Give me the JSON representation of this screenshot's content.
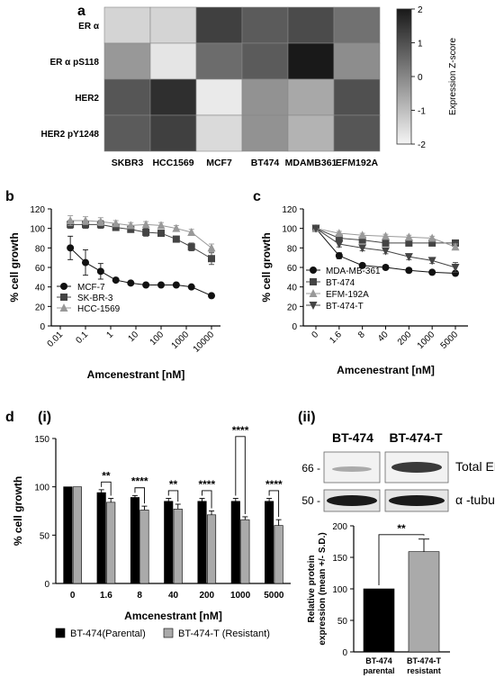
{
  "panel_labels": {
    "a": "a",
    "b": "b",
    "c": "c",
    "d": "d",
    "di": "(i)",
    "dii": "(ii)"
  },
  "chart_data": [
    {
      "panel": "a",
      "type": "heatmap",
      "rows": [
        "ER α",
        "ER α pS118",
        "HER2",
        "HER2 pY1248"
      ],
      "columns": [
        "SKBR3",
        "HCC1569",
        "MCF7",
        "BT474",
        "MDAMB361",
        "EFM192A"
      ],
      "values": [
        [
          -1.4,
          -1.4,
          1.3,
          0.8,
          1.1,
          0.4
        ],
        [
          -0.3,
          -1.7,
          0.5,
          0.8,
          2.0,
          -0.1
        ],
        [
          0.9,
          1.6,
          -1.8,
          -0.2,
          -0.6,
          1.0
        ],
        [
          0.8,
          1.3,
          -1.5,
          -0.2,
          -0.8,
          0.9
        ]
      ],
      "colorbar": {
        "label": "Expression Z-score",
        "min": -2,
        "max": 2,
        "ticks": [
          "2",
          "1",
          "0",
          "-1",
          "-2"
        ],
        "tick_values": [
          2,
          1,
          0,
          -1,
          -2
        ]
      }
    },
    {
      "panel": "b",
      "type": "line",
      "xscale": "log",
      "x_ticks": [
        "0.01",
        "0.1",
        "1",
        "10",
        "100",
        "1000",
        "10000"
      ],
      "x_tick_values": [
        0.01,
        0.1,
        1,
        10,
        100,
        1000,
        10000
      ],
      "y_ticks": [
        "0",
        "20",
        "40",
        "60",
        "80",
        "100",
        "120"
      ],
      "y_tick_values": [
        0,
        20,
        40,
        60,
        80,
        100,
        120
      ],
      "ylim": [
        0,
        120
      ],
      "xlabel": "Amcenestrant [nM]",
      "ylabel": "% cell growth",
      "legend_position": "bottom-left",
      "series": [
        {
          "name": "MCF-7",
          "marker": "circle",
          "color": "#111111",
          "x": [
            0.025,
            0.1,
            0.4,
            1.6,
            6.25,
            25,
            100,
            400,
            1600,
            10000
          ],
          "y": [
            80,
            65,
            56,
            47,
            44,
            42,
            42,
            42,
            40,
            31
          ],
          "err": [
            12,
            13,
            8,
            1,
            1,
            1,
            1,
            1,
            1,
            1
          ]
        },
        {
          "name": "SK-BR-3",
          "marker": "square",
          "color": "#444444",
          "x": [
            0.025,
            0.1,
            0.4,
            1.6,
            6.25,
            25,
            100,
            400,
            1600,
            10000
          ],
          "y": [
            104,
            104,
            104,
            101,
            99,
            96,
            95,
            89,
            81,
            69
          ],
          "err": [
            4,
            4,
            4,
            3,
            3,
            4,
            3,
            3,
            4,
            6
          ]
        },
        {
          "name": "HCC-1569",
          "marker": "triangle",
          "color": "#999999",
          "x": [
            0.025,
            0.1,
            0.4,
            1.6,
            6.25,
            25,
            100,
            400,
            1600,
            10000
          ],
          "y": [
            108,
            108,
            107,
            105,
            103,
            104,
            103,
            100,
            96,
            80
          ],
          "err": [
            5,
            4,
            4,
            3,
            3,
            3,
            3,
            3,
            3,
            4
          ]
        }
      ]
    },
    {
      "panel": "c",
      "type": "line",
      "x_ticks": [
        "0",
        "1.6",
        "8",
        "40",
        "200",
        "1000",
        "5000"
      ],
      "y_ticks": [
        "0",
        "20",
        "40",
        "60",
        "80",
        "100",
        "120"
      ],
      "y_tick_values": [
        0,
        20,
        40,
        60,
        80,
        100,
        120
      ],
      "ylim": [
        0,
        120
      ],
      "xlabel": "Amcenestrant [nM]",
      "ylabel": "% cell growth",
      "legend_position": "bottom-left",
      "series": [
        {
          "name": "MDA-MB-361",
          "marker": "circle",
          "color": "#111111",
          "y": [
            100,
            72,
            62,
            60,
            57,
            55,
            54
          ],
          "err": [
            0,
            3,
            2,
            2,
            2,
            2,
            2
          ]
        },
        {
          "name": "BT-474",
          "marker": "square",
          "color": "#444444",
          "y": [
            100,
            90,
            88,
            85,
            85,
            85,
            85
          ],
          "err": [
            0,
            3,
            2,
            2,
            2,
            2,
            3
          ]
        },
        {
          "name": "EFM-192A",
          "marker": "triangle",
          "color": "#999999",
          "y": [
            100,
            95,
            93,
            92,
            91,
            90,
            81
          ],
          "err": [
            0,
            2,
            2,
            2,
            2,
            2,
            3
          ]
        },
        {
          "name": "BT-474-T",
          "marker": "triangle-down",
          "color": "#444444",
          "y": [
            100,
            84,
            80,
            77,
            71,
            67,
            60
          ],
          "err": [
            0,
            3,
            3,
            3,
            3,
            3,
            5
          ]
        }
      ]
    },
    {
      "panel": "d(i)",
      "type": "bar",
      "categories": [
        "0",
        "1.6",
        "8",
        "40",
        "200",
        "1000",
        "5000"
      ],
      "xlabel": "Amcenestrant [nM]",
      "ylabel": "% cell growth",
      "y_ticks": [
        "0",
        "50",
        "100",
        "150"
      ],
      "y_tick_values": [
        0,
        50,
        100,
        150
      ],
      "ylim": [
        0,
        150
      ],
      "series": [
        {
          "name": "BT-474(Parental)",
          "color": "#000000",
          "values": [
            100,
            94,
            89,
            85,
            85,
            85,
            85
          ],
          "err": [
            0,
            3,
            2,
            3,
            3,
            3,
            3
          ]
        },
        {
          "name": "BT-474-T (Resistant)",
          "color": "#aaaaaa",
          "values": [
            100,
            84,
            76,
            77,
            71,
            66,
            60
          ],
          "err": [
            0,
            4,
            4,
            5,
            4,
            3,
            6
          ]
        }
      ],
      "significance": [
        "",
        "**",
        "****",
        "**",
        "****",
        "****",
        "****"
      ]
    },
    {
      "panel": "d(ii)",
      "type": "bar",
      "categories": [
        [
          "BT-474",
          "parental"
        ],
        [
          "BT-474-T",
          "resistant"
        ]
      ],
      "ylabel": [
        "Relative protein",
        "expression (mean +/- S.D.)"
      ],
      "y_ticks": [
        "0",
        "50",
        "100",
        "150",
        "200"
      ],
      "y_tick_values": [
        0,
        50,
        100,
        150,
        200
      ],
      "ylim": [
        0,
        200
      ],
      "values": [
        100,
        159
      ],
      "err": [
        0,
        20
      ],
      "colors": [
        "#000000",
        "#aaaaaa"
      ],
      "significance": "**"
    }
  ],
  "western_blot": {
    "lanes": [
      "BT-474",
      "BT-474-T"
    ],
    "bands": [
      {
        "label": "Total ER α",
        "marker": "66 -"
      },
      {
        "label": "α -tubulin",
        "marker": "50 -"
      }
    ]
  }
}
